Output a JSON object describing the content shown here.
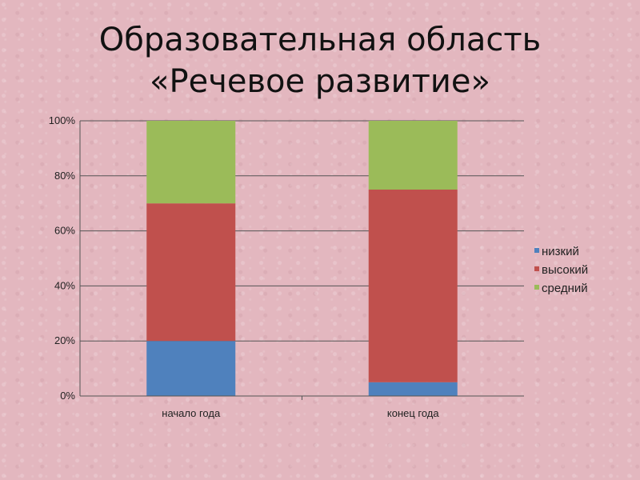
{
  "slide": {
    "title_line1": "Образовательная область",
    "title_line2": "«Речевое развитие»"
  },
  "chart_data": {
    "type": "bar",
    "stacked": true,
    "percent": true,
    "categories": [
      "начало года",
      "конец года"
    ],
    "series": [
      {
        "name": "низкий",
        "values": [
          20,
          5
        ],
        "color": "#4f81bd"
      },
      {
        "name": "высокий",
        "values": [
          50,
          70
        ],
        "color": "#c0504d"
      },
      {
        "name": "средний",
        "values": [
          30,
          25
        ],
        "color": "#9bbb59"
      }
    ],
    "yticks": [
      "0%",
      "20%",
      "40%",
      "60%",
      "80%",
      "100%"
    ],
    "ylim": [
      0,
      100
    ],
    "grid": true,
    "legend": "right"
  }
}
